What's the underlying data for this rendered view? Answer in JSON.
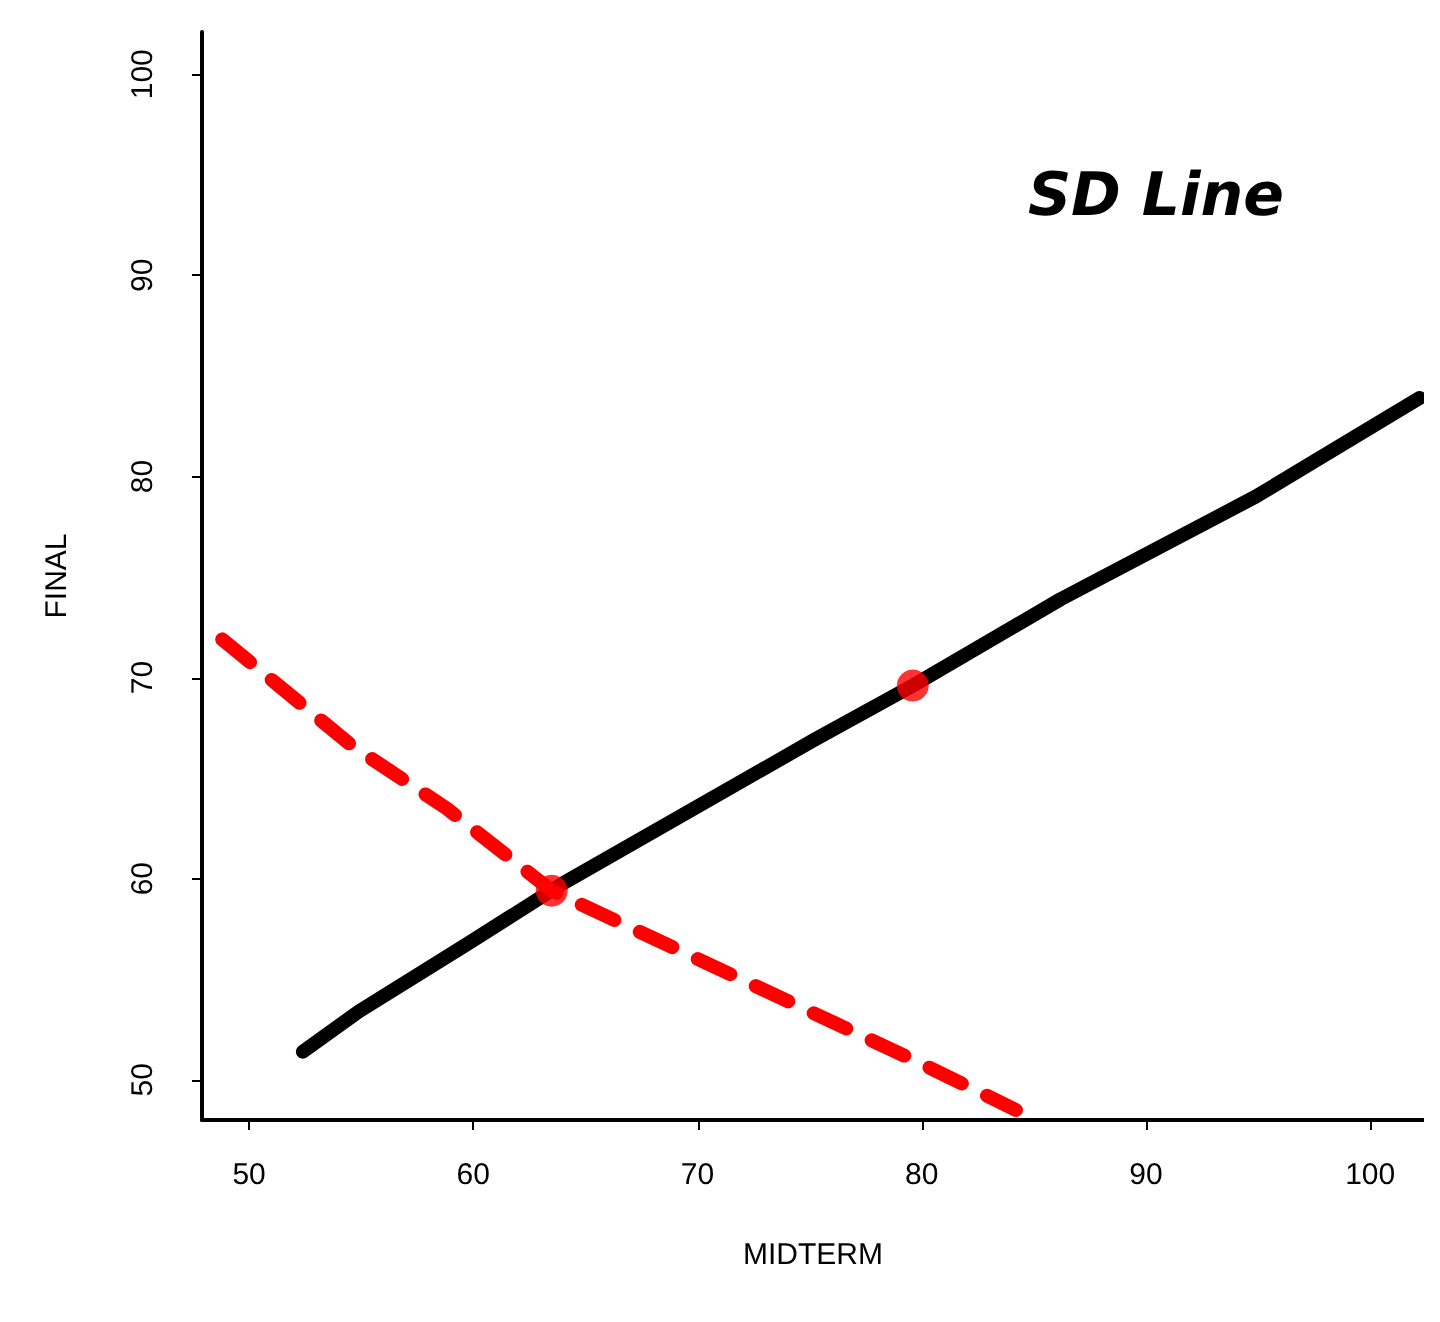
{
  "chart_data": {
    "type": "line",
    "xlabel": "MIDTERM",
    "ylabel": "FINAL",
    "xlim": [
      47.9,
      102.4
    ],
    "ylim": [
      48,
      102.1
    ],
    "xticks": [
      50,
      60,
      70,
      80,
      90,
      100
    ],
    "yticks": [
      50,
      60,
      70,
      80,
      90,
      100
    ],
    "grid": false,
    "marker": "none",
    "line_style": "solid",
    "annotations": [
      "SD Line"
    ],
    "series": [
      {
        "color": "#000000",
        "x": [
          52.4,
          54.9,
          59.8,
          63.9,
          75.2,
          79.6,
          86.2,
          94.9,
          102.2
        ],
        "values": [
          51.4,
          53.4,
          56.8,
          59.7,
          66.9,
          69.6,
          73.9,
          79.0,
          83.9
        ]
      },
      {
        "type": "line",
        "color": "#ff0000",
        "line_style": "dashed",
        "x": [
          48.8,
          54.6,
          58.8,
          63.5,
          79.8,
          84.2
        ],
        "values": [
          71.9,
          66.6,
          63.5,
          59.4,
          50.9,
          48.5
        ]
      },
      {
        "type": "scatter",
        "color": "#ff0000",
        "marker": "circle",
        "x": [
          63.5,
          79.6
        ],
        "values": [
          59.4,
          69.6
        ]
      }
    ]
  }
}
